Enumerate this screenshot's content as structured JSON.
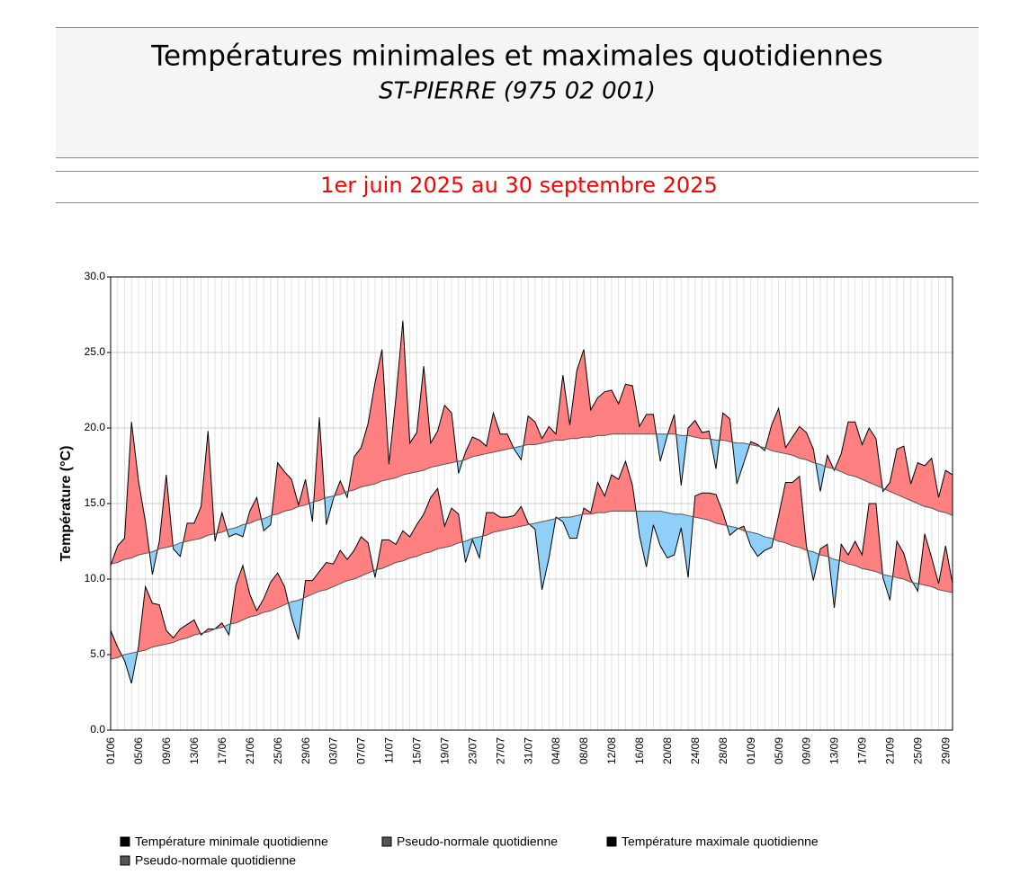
{
  "chart_data": {
    "type": "line",
    "title": "Températures minimales et maximales quotidiennes",
    "subtitle": "ST-PIERRE (975 02 001)",
    "period": "1er juin 2025 au 30 septembre 2025",
    "y_label": "Température (°C)",
    "categories": [
      "01/06",
      null,
      null,
      null,
      "05/06",
      null,
      null,
      null,
      "09/06",
      null,
      null,
      null,
      "13/06",
      null,
      null,
      null,
      "17/06",
      null,
      null,
      null,
      "21/06",
      null,
      null,
      null,
      "25/06",
      null,
      null,
      null,
      "29/06",
      null,
      null,
      null,
      "03/07",
      null,
      null,
      null,
      "07/07",
      null,
      null,
      null,
      "11/07",
      null,
      null,
      null,
      "15/07",
      null,
      null,
      null,
      "19/07",
      null,
      null,
      null,
      "23/07",
      null,
      null,
      null,
      "27/07",
      null,
      null,
      null,
      "31/07",
      null,
      null,
      null,
      "04/08",
      null,
      null,
      null,
      "08/08",
      null,
      null,
      null,
      "12/08",
      null,
      null,
      null,
      "16/08",
      null,
      null,
      null,
      "20/08",
      null,
      null,
      null,
      "24/08",
      null,
      null,
      null,
      "28/08",
      null,
      null,
      null,
      "01/09",
      null,
      null,
      null,
      "05/09",
      null,
      null,
      null,
      "09/09",
      null,
      null,
      null,
      "13/09",
      null,
      null,
      null,
      "17/09",
      null,
      null,
      null,
      "21/09",
      null,
      null,
      null,
      "25/09",
      null,
      null,
      null,
      "29/09",
      null
    ],
    "series": [
      {
        "name": "Température minimale quotidienne",
        "color": "#000000",
        "values": [
          6.6,
          5.5,
          4.6,
          3.1,
          5.5,
          9.5,
          8.4,
          8.3,
          6.6,
          6.1,
          6.7,
          7.0,
          7.3,
          6.3,
          6.7,
          6.7,
          7.1,
          6.3,
          9.6,
          10.9,
          9.0,
          7.9,
          8.7,
          9.8,
          10.4,
          9.5,
          7.5,
          6.0,
          9.9,
          9.9,
          10.5,
          11.1,
          11.0,
          11.9,
          11.3,
          11.9,
          12.8,
          12.4,
          10.1,
          12.6,
          12.6,
          12.3,
          13.2,
          12.8,
          13.6,
          14.3,
          15.4,
          16.0,
          13.5,
          14.7,
          14.3,
          11.1,
          12.6,
          11.4,
          14.4,
          14.4,
          14.1,
          14.1,
          14.2,
          14.8,
          13.7,
          13.3,
          9.3,
          11.4,
          14.1,
          13.8,
          12.7,
          12.7,
          14.7,
          14.4,
          16.4,
          15.5,
          16.9,
          16.6,
          17.8,
          16.2,
          12.9,
          10.8,
          13.6,
          12.2,
          11.4,
          11.6,
          13.4,
          10.1,
          15.5,
          15.7,
          15.7,
          15.6,
          14.4,
          12.9,
          13.3,
          13.5,
          12.2,
          11.5,
          11.9,
          12.1,
          14.2,
          16.4,
          16.4,
          16.8,
          12.2,
          9.9,
          12.0,
          12.3,
          8.1,
          12.3,
          11.6,
          12.5,
          11.6,
          15.0,
          15.0,
          10.1,
          8.6,
          12.5,
          11.7,
          10.0,
          9.2,
          13.0,
          11.4,
          9.7,
          12.2,
          9.7
        ]
      },
      {
        "name": "Pseudo-normale quotidienne",
        "color": "#555555",
        "values": [
          4.7,
          4.8,
          5.0,
          5.1,
          5.2,
          5.3,
          5.5,
          5.6,
          5.7,
          5.8,
          6.0,
          6.1,
          6.3,
          6.4,
          6.5,
          6.7,
          6.8,
          7.0,
          7.1,
          7.3,
          7.5,
          7.6,
          7.8,
          7.9,
          8.1,
          8.3,
          8.5,
          8.6,
          8.8,
          9.0,
          9.2,
          9.3,
          9.5,
          9.7,
          9.9,
          10.0,
          10.2,
          10.4,
          10.6,
          10.7,
          10.9,
          11.1,
          11.2,
          11.4,
          11.5,
          11.7,
          11.8,
          12.0,
          12.1,
          12.2,
          12.4,
          12.5,
          12.7,
          12.8,
          12.9,
          13.1,
          13.2,
          13.3,
          13.4,
          13.5,
          13.6,
          13.7,
          13.8,
          13.9,
          14.0,
          14.1,
          14.1,
          14.2,
          14.3,
          14.3,
          14.4,
          14.4,
          14.5,
          14.5,
          14.5,
          14.5,
          14.5,
          14.5,
          14.5,
          14.5,
          14.4,
          14.3,
          14.3,
          14.2,
          14.1,
          14.0,
          13.9,
          13.7,
          13.6,
          13.5,
          13.4,
          13.2,
          13.1,
          13.0,
          12.8,
          12.7,
          12.5,
          12.4,
          12.2,
          12.1,
          11.9,
          11.8,
          11.6,
          11.5,
          11.3,
          11.2,
          11.0,
          10.9,
          10.7,
          10.6,
          10.5,
          10.3,
          10.2,
          10.1,
          10.0,
          9.8,
          9.7,
          9.6,
          9.5,
          9.3,
          9.2,
          9.1
        ]
      },
      {
        "name": "Température maximale quotidienne",
        "color": "#000000",
        "values": [
          10.9,
          12.2,
          12.7,
          20.4,
          16.5,
          13.8,
          10.3,
          12.5,
          16.9,
          12.0,
          11.5,
          13.7,
          13.7,
          14.8,
          19.8,
          12.5,
          14.4,
          12.8,
          13.0,
          12.8,
          14.5,
          15.4,
          13.2,
          13.6,
          17.7,
          17.1,
          16.6,
          14.9,
          16.6,
          13.8,
          20.7,
          13.6,
          15.3,
          16.5,
          15.4,
          18.1,
          18.7,
          20.3,
          23.0,
          25.2,
          17.6,
          22.0,
          27.1,
          19.0,
          19.7,
          24.1,
          19.0,
          19.8,
          21.5,
          21.0,
          17.0,
          18.4,
          19.4,
          19.2,
          18.8,
          21.0,
          19.6,
          19.6,
          18.6,
          17.9,
          20.8,
          20.4,
          19.3,
          20.1,
          19.6,
          23.5,
          20.2,
          23.8,
          25.2,
          21.2,
          22.0,
          22.4,
          22.5,
          21.6,
          22.9,
          22.8,
          20.1,
          20.9,
          20.9,
          17.8,
          19.5,
          20.9,
          16.2,
          20.0,
          20.5,
          19.7,
          19.8,
          17.3,
          21.0,
          20.6,
          16.3,
          17.7,
          19.1,
          18.9,
          18.5,
          20.2,
          21.3,
          18.7,
          19.4,
          20.1,
          19.7,
          18.6,
          15.8,
          18.2,
          17.2,
          18.3,
          20.4,
          20.4,
          18.9,
          20.0,
          19.3,
          15.8,
          16.4,
          18.6,
          18.8,
          16.3,
          17.7,
          17.5,
          18.0,
          15.4,
          17.2,
          16.9
        ]
      },
      {
        "name": "Pseudo-normale quotidienne",
        "color": "#555555",
        "values": [
          11.0,
          11.1,
          11.3,
          11.4,
          11.6,
          11.7,
          11.8,
          12.0,
          12.1,
          12.2,
          12.4,
          12.5,
          12.6,
          12.7,
          12.9,
          13.0,
          13.1,
          13.3,
          13.4,
          13.6,
          13.7,
          13.9,
          14.0,
          14.2,
          14.3,
          14.5,
          14.6,
          14.8,
          14.9,
          15.1,
          15.2,
          15.4,
          15.5,
          15.6,
          15.8,
          15.9,
          16.1,
          16.2,
          16.3,
          16.5,
          16.6,
          16.7,
          16.9,
          17.0,
          17.1,
          17.2,
          17.4,
          17.5,
          17.6,
          17.7,
          17.8,
          17.9,
          18.1,
          18.2,
          18.3,
          18.4,
          18.5,
          18.6,
          18.7,
          18.8,
          18.9,
          18.9,
          19.0,
          19.1,
          19.2,
          19.2,
          19.3,
          19.3,
          19.4,
          19.4,
          19.5,
          19.5,
          19.6,
          19.6,
          19.6,
          19.6,
          19.6,
          19.6,
          19.6,
          19.6,
          19.6,
          19.6,
          19.5,
          19.5,
          19.4,
          19.3,
          19.3,
          19.2,
          19.2,
          19.1,
          19.0,
          19.0,
          18.9,
          18.8,
          18.7,
          18.5,
          18.4,
          18.3,
          18.2,
          18.0,
          17.9,
          17.7,
          17.6,
          17.4,
          17.3,
          17.1,
          16.9,
          16.8,
          16.6,
          16.4,
          16.2,
          16.0,
          15.8,
          15.6,
          15.4,
          15.2,
          15.0,
          14.8,
          14.7,
          14.5,
          14.4,
          14.2
        ]
      }
    ],
    "above_color": "#ff8080",
    "below_color": "#90d0f8",
    "ylim": [
      0,
      30
    ],
    "yticks": [
      {
        "value": 0,
        "label": "0.0"
      },
      {
        "value": 5,
        "label": "5.0"
      },
      {
        "value": 10,
        "label": "10.0"
      },
      {
        "value": 15,
        "label": "15.0"
      },
      {
        "value": 20,
        "label": "20.0"
      },
      {
        "value": 25,
        "label": "25.0"
      },
      {
        "value": 30,
        "label": "30.0"
      }
    ],
    "grid": true
  }
}
